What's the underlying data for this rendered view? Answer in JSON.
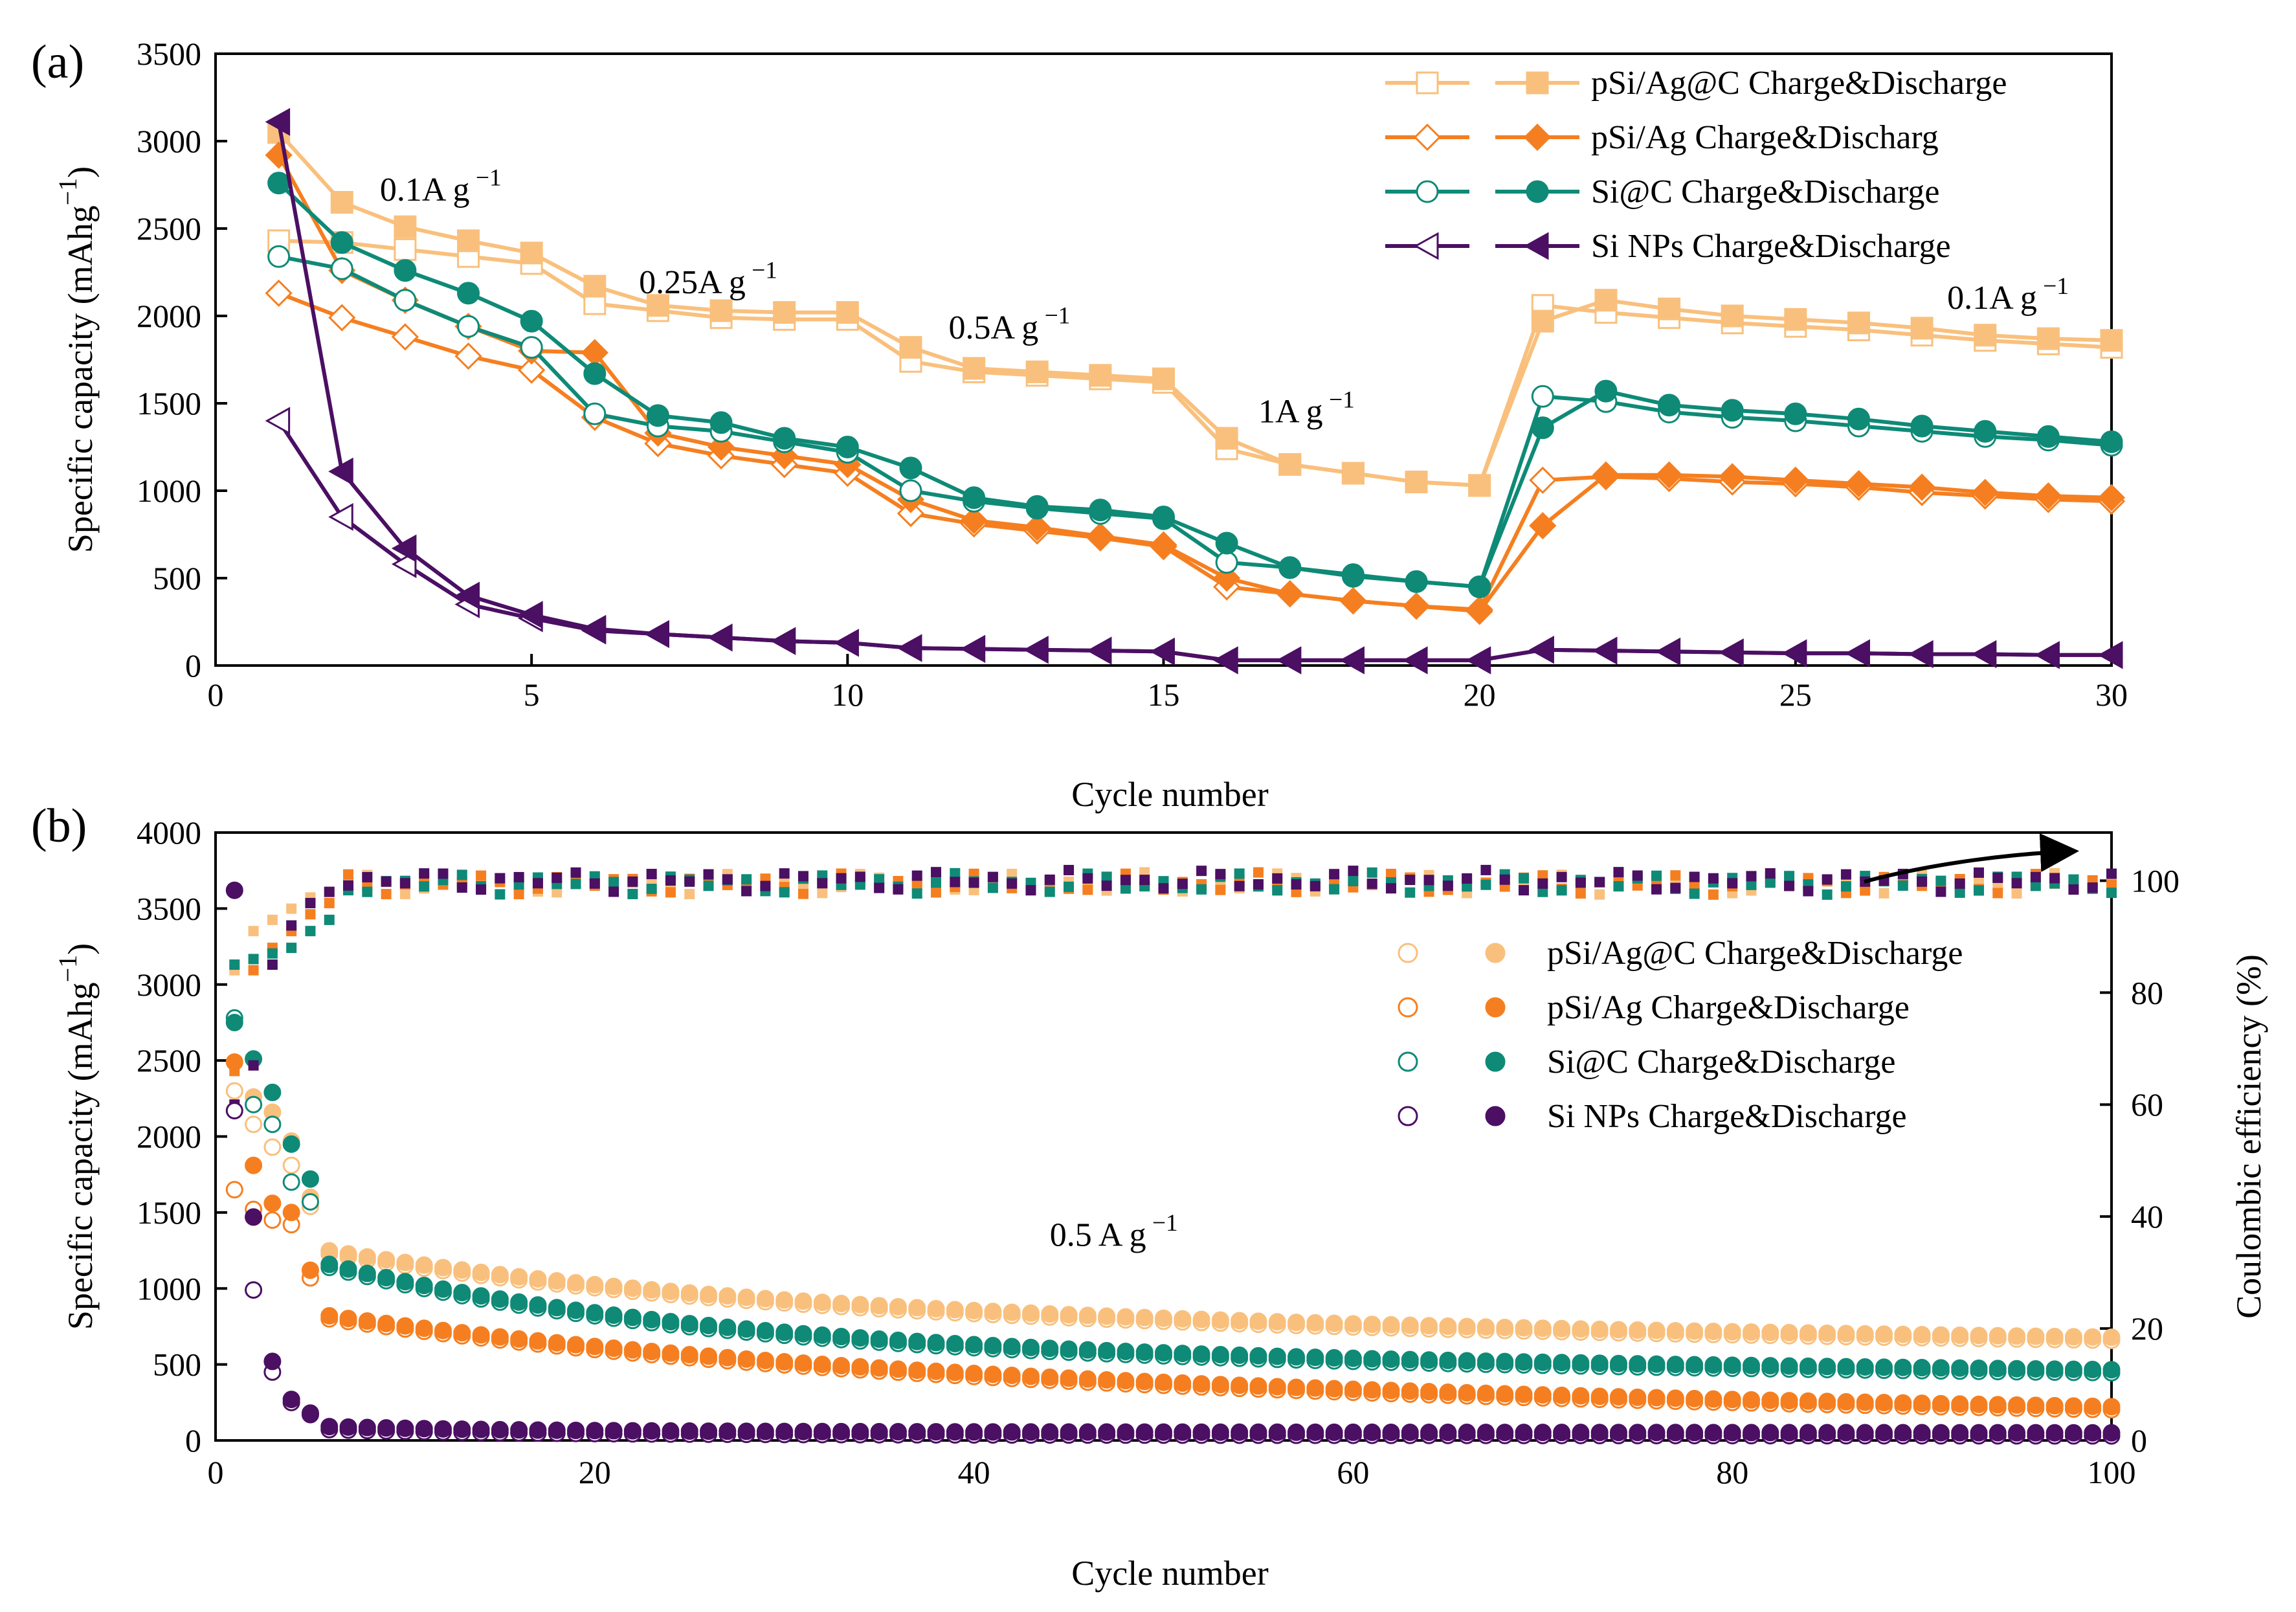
{
  "colors": {
    "pSiAgC": "#f9c07d",
    "pSiAg": "#f57f20",
    "SiC": "#0e8a77",
    "SiNPs": "#4b0f63",
    "axis": "#000000"
  },
  "chart_data": [
    {
      "id": "a",
      "panel_label": "(a)",
      "type": "line",
      "xlabel": "Cycle number",
      "ylabel": "Specific capacity (mAhg",
      "ylabel_sup": "−1",
      "ylabel_close": ")",
      "xlim": [
        0,
        30
      ],
      "ylim": [
        0,
        3500
      ],
      "xticks": [
        0,
        5,
        10,
        15,
        20,
        25,
        30
      ],
      "yticks": [
        0,
        500,
        1000,
        1500,
        2000,
        2500,
        3000,
        3500
      ],
      "legend_position": "top-right",
      "annotations": [
        {
          "text": "0.1A g",
          "sup": "−1",
          "x": 2.6,
          "y": 2660
        },
        {
          "text": "0.25A g",
          "sup": "−1",
          "x": 6.7,
          "y": 2130
        },
        {
          "text": "0.5A g",
          "sup": "−1",
          "x": 11.6,
          "y": 1870
        },
        {
          "text": "1A g",
          "sup": "−1",
          "x": 16.5,
          "y": 1390
        },
        {
          "text": "0.1A g",
          "sup": "−1",
          "x": 27.4,
          "y": 2040
        }
      ],
      "series": [
        {
          "name": "pSi/Ag@C Charge&Discharge",
          "key": "pSiAgC",
          "marker": "square",
          "x": [
            1,
            2,
            3,
            4,
            5,
            6,
            7,
            8,
            9,
            10,
            11,
            12,
            13,
            14,
            15,
            16,
            17,
            18,
            19,
            20,
            21,
            22,
            23,
            24,
            25,
            26,
            27,
            28,
            29,
            30
          ],
          "charge": [
            2430,
            2420,
            2380,
            2340,
            2300,
            2070,
            2030,
            1990,
            1980,
            1980,
            1740,
            1680,
            1660,
            1640,
            1620,
            1240,
            1150,
            1100,
            1050,
            1030,
            2060,
            2020,
            1990,
            1960,
            1940,
            1920,
            1890,
            1860,
            1840,
            1820
          ],
          "discharge": [
            3050,
            2650,
            2510,
            2430,
            2360,
            2170,
            2060,
            2030,
            2020,
            2020,
            1820,
            1700,
            1680,
            1660,
            1640,
            1300,
            1150,
            1100,
            1050,
            1030,
            1970,
            2090,
            2040,
            2000,
            1980,
            1960,
            1930,
            1890,
            1870,
            1860
          ]
        },
        {
          "name": "pSi/Ag Charge&Discharg",
          "key": "pSiAg",
          "marker": "diamond",
          "x": [
            1,
            2,
            3,
            4,
            5,
            6,
            7,
            8,
            9,
            10,
            11,
            12,
            13,
            14,
            15,
            16,
            17,
            18,
            19,
            20,
            21,
            22,
            23,
            24,
            25,
            26,
            27,
            28,
            29,
            30
          ],
          "charge": [
            2130,
            1990,
            1880,
            1770,
            1690,
            1420,
            1270,
            1200,
            1150,
            1100,
            870,
            810,
            770,
            730,
            680,
            450,
            410,
            370,
            340,
            320,
            1060,
            1080,
            1070,
            1050,
            1040,
            1020,
            990,
            970,
            950,
            940
          ],
          "discharge": [
            2920,
            2260,
            2090,
            1940,
            1800,
            1790,
            1330,
            1250,
            1200,
            1150,
            950,
            830,
            790,
            740,
            690,
            500,
            410,
            370,
            340,
            310,
            800,
            1090,
            1090,
            1080,
            1060,
            1040,
            1020,
            990,
            970,
            960
          ]
        },
        {
          "name": "Si@C Charge&Discharge",
          "key": "SiC",
          "marker": "circle",
          "x": [
            1,
            2,
            3,
            4,
            5,
            6,
            7,
            8,
            9,
            10,
            11,
            12,
            13,
            14,
            15,
            16,
            17,
            18,
            19,
            20,
            21,
            22,
            23,
            24,
            25,
            26,
            27,
            28,
            29,
            30
          ],
          "charge": [
            2340,
            2270,
            2090,
            1940,
            1820,
            1440,
            1370,
            1340,
            1280,
            1220,
            1000,
            940,
            900,
            870,
            840,
            590,
            560,
            510,
            480,
            450,
            1540,
            1510,
            1450,
            1420,
            1400,
            1370,
            1340,
            1310,
            1290,
            1260
          ],
          "discharge": [
            2760,
            2420,
            2260,
            2130,
            1970,
            1670,
            1430,
            1390,
            1300,
            1250,
            1130,
            960,
            910,
            890,
            850,
            700,
            560,
            520,
            480,
            450,
            1360,
            1570,
            1490,
            1460,
            1440,
            1410,
            1370,
            1340,
            1310,
            1280
          ]
        },
        {
          "name": "Si NPs Charge&Discharge",
          "key": "SiNPs",
          "marker": "triangle-left",
          "x": [
            1,
            2,
            3,
            4,
            5,
            6,
            7,
            8,
            9,
            10,
            11,
            12,
            13,
            14,
            15,
            16,
            17,
            18,
            19,
            20,
            21,
            22,
            23,
            24,
            25,
            26,
            27,
            28,
            29,
            30
          ],
          "charge": [
            1400,
            850,
            580,
            350,
            270,
            200,
            180,
            160,
            140,
            130,
            100,
            95,
            90,
            85,
            80,
            30,
            30,
            30,
            30,
            30,
            90,
            85,
            80,
            75,
            70,
            70,
            65,
            65,
            60,
            60
          ],
          "discharge": [
            3110,
            1110,
            670,
            400,
            290,
            210,
            180,
            160,
            140,
            130,
            100,
            95,
            90,
            85,
            80,
            30,
            30,
            30,
            30,
            30,
            90,
            85,
            80,
            75,
            70,
            70,
            65,
            65,
            60,
            60
          ]
        }
      ]
    },
    {
      "id": "b",
      "panel_label": "(b)",
      "type": "scatter",
      "xlabel": "Cycle number",
      "ylabel": "Specific capacity (mAhg",
      "ylabel_sup": "−1",
      "ylabel_close": ")",
      "y2label": "Coulombic efficiency (%)",
      "xlim": [
        0,
        100
      ],
      "ylim": [
        0,
        4000
      ],
      "y2lim": [
        0,
        108.6
      ],
      "xticks": [
        0,
        20,
        40,
        60,
        80,
        100
      ],
      "yticks": [
        0,
        500,
        1000,
        1500,
        2000,
        2500,
        3000,
        3500,
        4000
      ],
      "y2ticks": [
        0,
        20,
        40,
        60,
        80,
        100
      ],
      "legend_position": "center-right",
      "annotation": {
        "text": "0.5 A g",
        "sup": "−1",
        "x": 44,
        "y": 1280
      },
      "series": [
        {
          "name": "pSi/Ag@C Charge&Discharge",
          "key": "pSiAgC",
          "discharge_first": [
            2760,
            2260,
            2160,
            1970,
            1600
          ],
          "charge_first": [
            2300,
            2080,
            1930,
            1810,
            1540
          ],
          "tail_from": 6,
          "tail_start": 1500,
          "tail_end": 660,
          "tail_k": 0.042,
          "tail_mid": 870,
          "ce_first": [
            84,
            91,
            93,
            95,
            97,
            98
          ],
          "ce_end": 99.5
        },
        {
          "name": "pSi/Ag Charge&Discharge",
          "key": "pSiAg",
          "discharge_first": [
            2490,
            1810,
            1560,
            1500,
            1120
          ],
          "charge_first": [
            1650,
            1520,
            1450,
            1420,
            1070
          ],
          "tail_from": 5,
          "tail_start": 1120,
          "tail_end": 190,
          "tail_k": 0.033,
          "tail_mid": 420,
          "ce_first": [
            66,
            84,
            88,
            91,
            94,
            96
          ],
          "ce_end": 99.5
        },
        {
          "name": "Si@C Charge&Discharge",
          "key": "SiC",
          "discharge_first": [
            2750,
            2510,
            2290,
            1950,
            1720
          ],
          "charge_first": [
            2780,
            2210,
            2080,
            1700,
            1570
          ],
          "tail_from": 6,
          "tail_start": 1550,
          "tail_end": 450,
          "tail_k": 0.05,
          "tail_mid": 620,
          "ce_first": [
            85,
            86,
            87,
            88,
            91,
            93
          ],
          "ce_end": 99.5
        },
        {
          "name": "Si NPs Charge&Discharge",
          "key": "SiNPs",
          "discharge_first": [
            3620,
            1470,
            520,
            270,
            180
          ],
          "charge_first": [
            2170,
            990,
            450,
            250,
            170
          ],
          "tail_from": 6,
          "tail_start": 100,
          "tail_end": 40,
          "tail_k": 0.1,
          "tail_mid": 55,
          "ce_first": [
            60,
            67,
            85,
            92,
            96,
            98
          ],
          "ce_end": 100
        }
      ]
    }
  ]
}
